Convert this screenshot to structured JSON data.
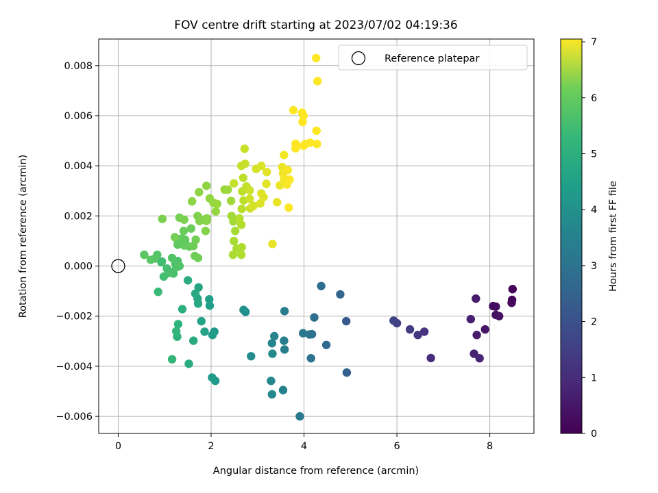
{
  "chart_data": {
    "type": "scatter",
    "title": "FOV centre drift starting at 2023/07/02 04:19:36",
    "xlabel": "Angular distance from reference (arcmin)",
    "ylabel": "Rotation from reference (arcmin)",
    "xlim": [
      -0.42,
      8.95
    ],
    "ylim": [
      -0.00668,
      0.00906
    ],
    "x_ticks": [
      0,
      2,
      4,
      6,
      8
    ],
    "x_tick_labels": [
      "0",
      "2",
      "4",
      "6",
      "8"
    ],
    "y_ticks": [
      -0.006,
      -0.004,
      -0.002,
      0.0,
      0.002,
      0.004,
      0.006,
      0.008
    ],
    "y_tick_labels": [
      "−0.006",
      "−0.004",
      "−0.002",
      "0.000",
      "0.002",
      "0.004",
      "0.006",
      "0.008"
    ],
    "grid": true,
    "legend": {
      "position": "top-right",
      "entries": [
        {
          "label": "Reference platepar",
          "marker": "open-circle",
          "x": 0,
          "y": 0
        }
      ]
    },
    "colorbar": {
      "label": "Hours from first FF file",
      "colormap": "viridis",
      "range": [
        0,
        7.05
      ],
      "ticks": [
        0,
        1,
        2,
        3,
        4,
        5,
        6,
        7
      ],
      "tick_labels": [
        "0",
        "1",
        "2",
        "3",
        "4",
        "5",
        "6",
        "7"
      ]
    },
    "points": [
      [
        8.49,
        -0.00092,
        0.05
      ],
      [
        8.48,
        -0.00135,
        0.1
      ],
      [
        8.47,
        -0.00147,
        0.15
      ],
      [
        8.07,
        -0.0016,
        0.22
      ],
      [
        8.13,
        -0.00162,
        0.25
      ],
      [
        8.13,
        -0.00195,
        0.3
      ],
      [
        8.2,
        -0.002,
        0.35
      ],
      [
        7.9,
        -0.00253,
        0.42
      ],
      [
        7.7,
        -0.0013,
        0.5
      ],
      [
        7.72,
        -0.00275,
        0.55
      ],
      [
        7.59,
        -0.00212,
        0.6
      ],
      [
        7.66,
        -0.0035,
        0.68
      ],
      [
        7.78,
        -0.00368,
        0.75
      ],
      [
        6.73,
        -0.00367,
        0.9
      ],
      [
        6.59,
        -0.00262,
        1.05
      ],
      [
        6.45,
        -0.00275,
        1.15
      ],
      [
        6.28,
        -0.00253,
        1.25
      ],
      [
        6.0,
        -0.00228,
        1.35
      ],
      [
        5.93,
        -0.00218,
        1.45
      ],
      [
        4.91,
        -0.0022,
        2.0
      ],
      [
        4.92,
        -0.00425,
        2.15
      ],
      [
        4.78,
        -0.00113,
        2.3
      ],
      [
        4.48,
        -0.00315,
        2.4
      ],
      [
        4.37,
        -0.0008,
        2.5
      ],
      [
        4.22,
        -0.00205,
        2.55
      ],
      [
        4.17,
        -0.00272,
        2.6
      ],
      [
        4.15,
        -0.00368,
        2.65
      ],
      [
        4.12,
        -0.00273,
        2.7
      ],
      [
        3.98,
        -0.00268,
        2.8
      ],
      [
        3.91,
        -0.006,
        2.85
      ],
      [
        3.58,
        -0.0018,
        2.95
      ],
      [
        3.57,
        -0.00298,
        3.0
      ],
      [
        3.58,
        -0.00333,
        3.05
      ],
      [
        3.55,
        -0.00495,
        3.1
      ],
      [
        3.36,
        -0.0028,
        3.15
      ],
      [
        3.31,
        -0.00308,
        3.2
      ],
      [
        3.29,
        -0.00458,
        3.25
      ],
      [
        3.31,
        -0.00512,
        3.3
      ],
      [
        3.32,
        -0.0035,
        3.35
      ],
      [
        2.86,
        -0.0036,
        3.4
      ],
      [
        2.74,
        -0.00183,
        3.5
      ],
      [
        2.7,
        -0.00175,
        3.55
      ],
      [
        2.07,
        -0.00262,
        3.7
      ],
      [
        2.09,
        -0.00458,
        3.8
      ],
      [
        2.02,
        -0.00445,
        3.85
      ],
      [
        2.03,
        -0.00275,
        3.9
      ],
      [
        1.97,
        -0.00158,
        3.95
      ],
      [
        1.96,
        -0.00133,
        4.0
      ],
      [
        1.86,
        -0.00262,
        4.05
      ],
      [
        1.79,
        -0.0022,
        4.1
      ],
      [
        1.73,
        -0.00085,
        4.15
      ],
      [
        1.72,
        -0.0015,
        4.2
      ],
      [
        1.71,
        -0.0013,
        4.22
      ],
      [
        1.66,
        -0.0011,
        4.25
      ],
      [
        1.62,
        -0.00298,
        4.3
      ],
      [
        1.52,
        -0.0039,
        4.35
      ],
      [
        1.5,
        -0.00057,
        4.4
      ],
      [
        1.38,
        -0.00172,
        4.45
      ],
      [
        1.29,
        -0.00232,
        4.5
      ],
      [
        1.27,
        -0.00282,
        4.55
      ],
      [
        1.25,
        -0.0026,
        4.6
      ],
      [
        1.16,
        -0.00372,
        4.65
      ],
      [
        0.86,
        -0.00103,
        4.75
      ],
      [
        0.93,
        0.00015,
        4.85
      ],
      [
        0.94,
        0.00018,
        4.88
      ],
      [
        0.98,
        -0.00042,
        4.9
      ],
      [
        1.05,
        -0.0001,
        4.92
      ],
      [
        1.08,
        -0.00028,
        4.95
      ],
      [
        1.15,
        -0.00025,
        4.97
      ],
      [
        1.19,
        -0.0003,
        5.0
      ],
      [
        1.23,
        0.0001,
        5.02
      ],
      [
        1.28,
        0.0002,
        5.05
      ],
      [
        1.25,
        -5e-05,
        5.07
      ],
      [
        1.32,
        0.0,
        5.1
      ],
      [
        1.16,
        0.00032,
        5.12
      ],
      [
        0.84,
        0.00045,
        5.15
      ],
      [
        0.79,
        0.0003,
        5.18
      ],
      [
        0.7,
        0.00025,
        5.2
      ],
      [
        0.56,
        0.00045,
        5.22
      ],
      [
        1.28,
        0.00085,
        5.25
      ],
      [
        1.25,
        0.0011,
        5.28
      ],
      [
        1.37,
        0.0011,
        5.3
      ],
      [
        1.44,
        0.00105,
        5.32
      ],
      [
        1.42,
        0.00082,
        5.35
      ],
      [
        1.53,
        0.00078,
        5.38
      ],
      [
        1.41,
        0.0014,
        5.4
      ],
      [
        1.57,
        0.0015,
        5.42
      ],
      [
        1.62,
        0.0008,
        5.45
      ],
      [
        1.65,
        0.0004,
        5.47
      ],
      [
        1.72,
        0.00032,
        5.5
      ],
      [
        1.67,
        0.00105,
        5.52
      ],
      [
        1.22,
        0.00115,
        5.55
      ],
      [
        1.32,
        0.00193,
        5.57
      ],
      [
        1.42,
        0.00185,
        5.6
      ],
      [
        0.95,
        0.00188,
        5.62
      ],
      [
        1.71,
        0.002,
        5.65
      ],
      [
        1.75,
        0.0018,
        5.67
      ],
      [
        1.81,
        0.00185,
        5.7
      ],
      [
        1.88,
        0.0014,
        5.72
      ],
      [
        1.91,
        0.0019,
        5.75
      ],
      [
        1.9,
        0.0018,
        5.77
      ],
      [
        1.59,
        0.00258,
        5.8
      ],
      [
        1.74,
        0.00295,
        5.82
      ],
      [
        1.9,
        0.0032,
        5.85
      ],
      [
        1.97,
        0.0027,
        5.87
      ],
      [
        2.05,
        0.00252,
        5.9
      ],
      [
        2.1,
        0.00218,
        5.92
      ],
      [
        2.13,
        0.00248,
        5.95
      ],
      [
        2.29,
        0.00305,
        5.97
      ],
      [
        2.36,
        0.00305,
        6.0
      ],
      [
        2.43,
        0.0026,
        6.02
      ],
      [
        2.44,
        0.002,
        6.05
      ],
      [
        2.48,
        0.00178,
        6.07
      ],
      [
        2.52,
        0.0014,
        6.1
      ],
      [
        2.49,
        0.001,
        6.12
      ],
      [
        2.55,
        0.0007,
        6.15
      ],
      [
        2.47,
        0.00045,
        6.17
      ],
      [
        2.66,
        0.00075,
        6.2
      ],
      [
        2.65,
        0.00045,
        6.22
      ],
      [
        2.65,
        0.00165,
        6.25
      ],
      [
        2.61,
        0.0019,
        6.27
      ],
      [
        2.66,
        0.00228,
        6.3
      ],
      [
        2.7,
        0.00262,
        6.32
      ],
      [
        2.67,
        0.00298,
        6.35
      ],
      [
        2.69,
        0.00352,
        6.37
      ],
      [
        2.76,
        0.00318,
        6.4
      ],
      [
        2.49,
        0.0033,
        6.42
      ],
      [
        2.65,
        0.004,
        6.45
      ],
      [
        2.73,
        0.00408,
        6.47
      ],
      [
        2.72,
        0.00468,
        6.5
      ],
      [
        2.83,
        0.00302,
        6.52
      ],
      [
        2.83,
        0.00268,
        6.55
      ],
      [
        2.84,
        0.0023,
        6.57
      ],
      [
        2.91,
        0.0024,
        6.6
      ],
      [
        2.97,
        0.00388,
        6.62
      ],
      [
        3.08,
        0.004,
        6.65
      ],
      [
        3.06,
        0.0025,
        6.67
      ],
      [
        3.08,
        0.0029,
        6.7
      ],
      [
        3.13,
        0.00275,
        6.72
      ],
      [
        3.19,
        0.00328,
        6.75
      ],
      [
        3.2,
        0.00375,
        6.77
      ],
      [
        3.32,
        0.00088,
        6.8
      ],
      [
        3.42,
        0.00255,
        6.82
      ],
      [
        3.48,
        0.00322,
        6.85
      ],
      [
        3.53,
        0.00395,
        6.87
      ],
      [
        3.55,
        0.0037,
        6.9
      ],
      [
        3.57,
        0.00443,
        6.92
      ],
      [
        3.57,
        0.0035,
        6.95
      ],
      [
        3.63,
        0.00325,
        6.97
      ],
      [
        3.65,
        0.00383,
        7.0
      ],
      [
        3.69,
        0.00345,
        7.02
      ],
      [
        3.67,
        0.00233,
        7.03
      ],
      [
        3.77,
        0.00622,
        7.04
      ],
      [
        3.82,
        0.00488,
        7.05
      ],
      [
        3.82,
        0.0047,
        7.05
      ],
      [
        3.96,
        0.00612,
        7.05
      ],
      [
        3.99,
        0.006,
        7.05
      ],
      [
        3.97,
        0.00575,
        7.05
      ],
      [
        4.03,
        0.00487,
        7.05
      ],
      [
        4.13,
        0.00492,
        7.05
      ],
      [
        3.99,
        0.0048,
        7.05
      ],
      [
        4.27,
        0.0054,
        7.05
      ],
      [
        4.28,
        0.00487,
        7.05
      ],
      [
        4.26,
        0.0083,
        7.05
      ],
      [
        4.29,
        0.00738,
        7.05
      ]
    ]
  }
}
